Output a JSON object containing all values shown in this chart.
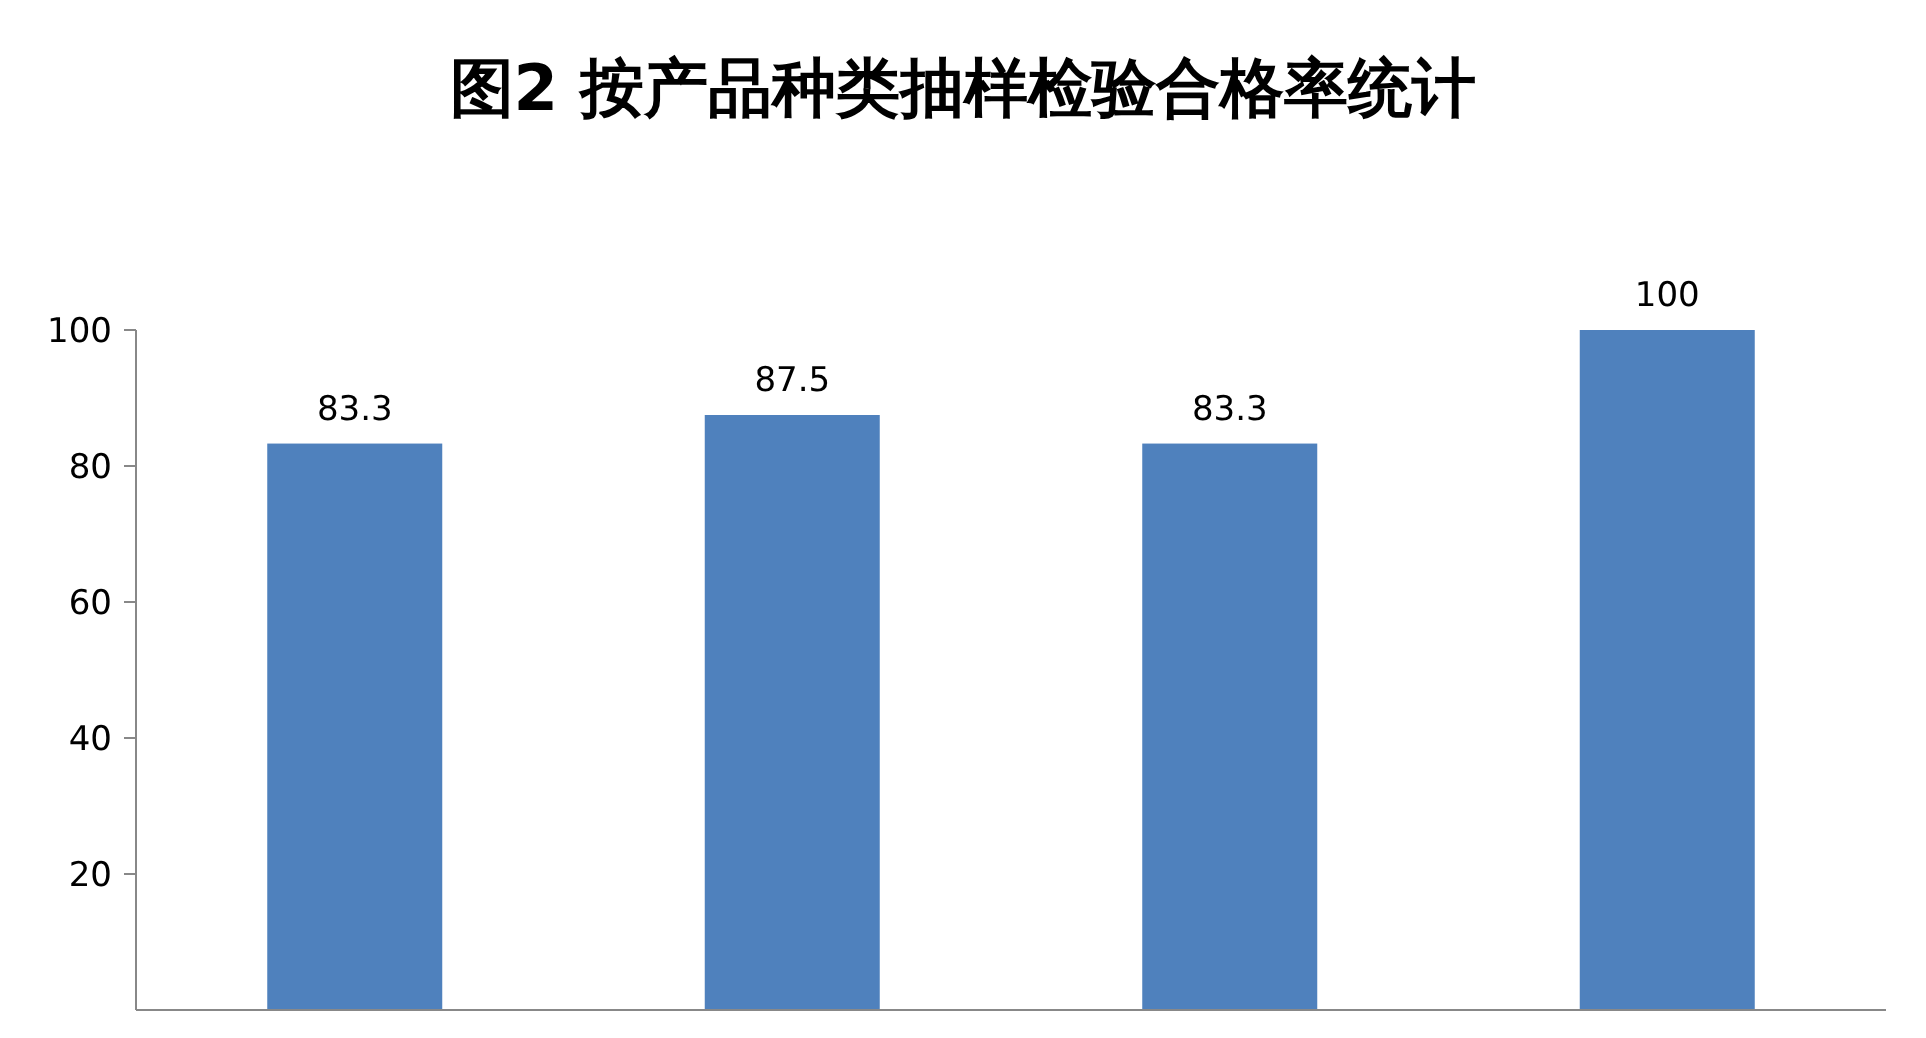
{
  "chart_data": {
    "type": "bar",
    "title": "图2  按产品种类抽样检验合格率统计",
    "categories": [
      null,
      null,
      null,
      null
    ],
    "values": [
      83.3,
      87.5,
      83.3,
      100
    ],
    "color": "#4f81bd",
    "ylim": [
      0,
      100
    ],
    "yticks": [
      20,
      40,
      60,
      80,
      100
    ],
    "data_labels": true,
    "grid": false
  }
}
